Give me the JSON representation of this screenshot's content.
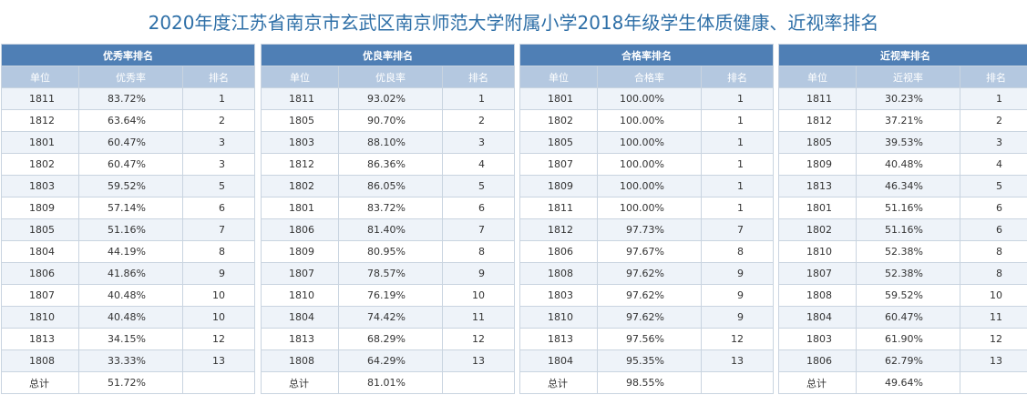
{
  "title": "2020年度江苏省南京市玄武区南京师范大学附属小学2018年级学生体质健康、近视率排名",
  "tables": [
    {
      "name": "优秀率排名",
      "headers": [
        "单位",
        "优秀率",
        "排名"
      ],
      "rows": [
        [
          "1811",
          "83.72%",
          "1"
        ],
        [
          "1812",
          "63.64%",
          "2"
        ],
        [
          "1801",
          "60.47%",
          "3"
        ],
        [
          "1802",
          "60.47%",
          "3"
        ],
        [
          "1803",
          "59.52%",
          "5"
        ],
        [
          "1809",
          "57.14%",
          "6"
        ],
        [
          "1805",
          "51.16%",
          "7"
        ],
        [
          "1804",
          "44.19%",
          "8"
        ],
        [
          "1806",
          "41.86%",
          "9"
        ],
        [
          "1807",
          "40.48%",
          "10"
        ],
        [
          "1810",
          "40.48%",
          "10"
        ],
        [
          "1813",
          "34.15%",
          "12"
        ],
        [
          "1808",
          "33.33%",
          "13"
        ]
      ],
      "total": [
        "总计",
        "51.72%",
        ""
      ]
    },
    {
      "name": "优良率排名",
      "headers": [
        "单位",
        "优良率",
        "排名"
      ],
      "rows": [
        [
          "1811",
          "93.02%",
          "1"
        ],
        [
          "1805",
          "90.70%",
          "2"
        ],
        [
          "1803",
          "88.10%",
          "3"
        ],
        [
          "1812",
          "86.36%",
          "4"
        ],
        [
          "1802",
          "86.05%",
          "5"
        ],
        [
          "1801",
          "83.72%",
          "6"
        ],
        [
          "1806",
          "81.40%",
          "7"
        ],
        [
          "1809",
          "80.95%",
          "8"
        ],
        [
          "1807",
          "78.57%",
          "9"
        ],
        [
          "1810",
          "76.19%",
          "10"
        ],
        [
          "1804",
          "74.42%",
          "11"
        ],
        [
          "1813",
          "68.29%",
          "12"
        ],
        [
          "1808",
          "64.29%",
          "13"
        ]
      ],
      "total": [
        "总计",
        "81.01%",
        ""
      ]
    },
    {
      "name": "合格率排名",
      "headers": [
        "单位",
        "合格率",
        "排名"
      ],
      "rows": [
        [
          "1801",
          "100.00%",
          "1"
        ],
        [
          "1802",
          "100.00%",
          "1"
        ],
        [
          "1805",
          "100.00%",
          "1"
        ],
        [
          "1807",
          "100.00%",
          "1"
        ],
        [
          "1809",
          "100.00%",
          "1"
        ],
        [
          "1811",
          "100.00%",
          "1"
        ],
        [
          "1812",
          "97.73%",
          "7"
        ],
        [
          "1806",
          "97.67%",
          "8"
        ],
        [
          "1808",
          "97.62%",
          "9"
        ],
        [
          "1803",
          "97.62%",
          "9"
        ],
        [
          "1810",
          "97.62%",
          "9"
        ],
        [
          "1813",
          "97.56%",
          "12"
        ],
        [
          "1804",
          "95.35%",
          "13"
        ]
      ],
      "total": [
        "总计",
        "98.55%",
        ""
      ]
    },
    {
      "name": "近视率排名",
      "headers": [
        "单位",
        "近视率",
        "排名"
      ],
      "rows": [
        [
          "1811",
          "30.23%",
          "1"
        ],
        [
          "1812",
          "37.21%",
          "2"
        ],
        [
          "1805",
          "39.53%",
          "3"
        ],
        [
          "1809",
          "40.48%",
          "4"
        ],
        [
          "1813",
          "46.34%",
          "5"
        ],
        [
          "1801",
          "51.16%",
          "6"
        ],
        [
          "1802",
          "51.16%",
          "6"
        ],
        [
          "1810",
          "52.38%",
          "8"
        ],
        [
          "1807",
          "52.38%",
          "8"
        ],
        [
          "1808",
          "59.52%",
          "10"
        ],
        [
          "1804",
          "60.47%",
          "11"
        ],
        [
          "1803",
          "61.90%",
          "12"
        ],
        [
          "1806",
          "62.79%",
          "13"
        ]
      ],
      "total": [
        "总计",
        "49.64%",
        ""
      ]
    }
  ],
  "colors": {
    "title": "#2e6fa7",
    "panel_header": "#4f7fb5",
    "column_header": "#b4c8e0",
    "alt_row": "#eef3f9"
  }
}
